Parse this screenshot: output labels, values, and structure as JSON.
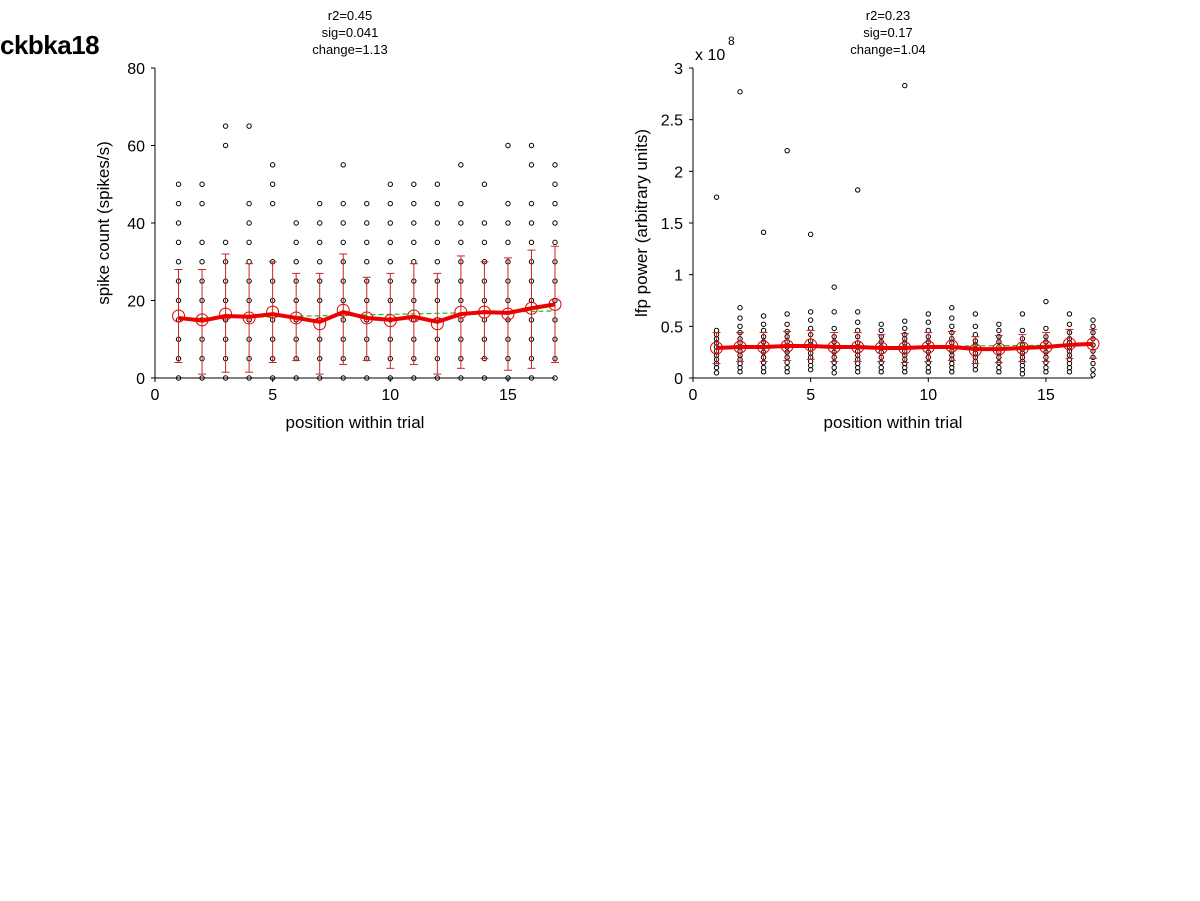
{
  "figure_title": "ckbka18",
  "chart_data": [
    {
      "type": "scatter",
      "stats": [
        "r2=0.45",
        "sig=0.041",
        "change=1.13"
      ],
      "xlabel": "position within trial",
      "ylabel": "spike count (spikes/s)",
      "exponent_label": "",
      "xlim": [
        0,
        17
      ],
      "ylim": [
        0,
        80
      ],
      "xticks": [
        0,
        5,
        10,
        15
      ],
      "xtick_labels": [
        "0",
        "5",
        "10",
        "15"
      ],
      "yticks": [
        0,
        20,
        40,
        60,
        80
      ],
      "ytick_labels": [
        "0",
        "20",
        "40",
        "60",
        "80"
      ],
      "grid": false,
      "raw_points": [
        {
          "x": 1,
          "values": [
            0,
            5,
            10,
            15,
            20,
            25,
            30,
            35,
            40,
            45,
            50
          ]
        },
        {
          "x": 2,
          "values": [
            0,
            5,
            10,
            15,
            20,
            25,
            30,
            35,
            45,
            50
          ]
        },
        {
          "x": 3,
          "values": [
            0,
            5,
            10,
            15,
            20,
            25,
            30,
            35,
            60,
            65
          ]
        },
        {
          "x": 4,
          "values": [
            0,
            5,
            10,
            15,
            20,
            25,
            30,
            35,
            40,
            45,
            65
          ]
        },
        {
          "x": 5,
          "values": [
            0,
            5,
            10,
            15,
            20,
            25,
            30,
            45,
            50,
            55
          ]
        },
        {
          "x": 6,
          "values": [
            0,
            5,
            10,
            15,
            20,
            25,
            30,
            35,
            40
          ]
        },
        {
          "x": 7,
          "values": [
            0,
            5,
            10,
            15,
            20,
            25,
            30,
            35,
            40,
            45
          ]
        },
        {
          "x": 8,
          "values": [
            0,
            5,
            10,
            15,
            20,
            25,
            30,
            35,
            40,
            45,
            55
          ]
        },
        {
          "x": 9,
          "values": [
            0,
            5,
            10,
            15,
            20,
            25,
            30,
            35,
            40,
            45
          ]
        },
        {
          "x": 10,
          "values": [
            0,
            5,
            10,
            15,
            20,
            25,
            30,
            35,
            40,
            45,
            50
          ]
        },
        {
          "x": 11,
          "values": [
            0,
            5,
            10,
            15,
            20,
            25,
            30,
            35,
            40,
            45,
            50
          ]
        },
        {
          "x": 12,
          "values": [
            0,
            5,
            10,
            15,
            20,
            25,
            30,
            35,
            40,
            45,
            50
          ]
        },
        {
          "x": 13,
          "values": [
            0,
            5,
            10,
            15,
            20,
            25,
            30,
            35,
            40,
            45,
            55
          ]
        },
        {
          "x": 14,
          "values": [
            0,
            5,
            10,
            15,
            20,
            25,
            30,
            35,
            40,
            50
          ]
        },
        {
          "x": 15,
          "values": [
            0,
            5,
            10,
            15,
            20,
            25,
            30,
            35,
            40,
            45,
            60
          ]
        },
        {
          "x": 16,
          "values": [
            0,
            5,
            10,
            15,
            20,
            25,
            30,
            35,
            40,
            45,
            55,
            60
          ]
        },
        {
          "x": 17,
          "values": [
            0,
            5,
            10,
            15,
            20,
            25,
            30,
            35,
            40,
            45,
            50,
            55
          ]
        }
      ],
      "mean": {
        "x": [
          1,
          2,
          3,
          4,
          5,
          6,
          7,
          8,
          9,
          10,
          11,
          12,
          13,
          14,
          15,
          16,
          17
        ],
        "y": [
          16,
          15,
          16.5,
          15.5,
          17,
          15.5,
          14,
          17.5,
          15.5,
          14.8,
          16,
          14,
          17,
          17,
          16.5,
          18,
          19
        ],
        "err_low": [
          4,
          1,
          1.5,
          1.5,
          4,
          4.5,
          1,
          3.5,
          4.5,
          2.5,
          3.5,
          1,
          2.5,
          5,
          2,
          2.5,
          4
        ],
        "err_high": [
          28,
          28,
          32,
          29.5,
          30,
          27,
          27,
          32,
          26,
          27,
          29.5,
          27,
          31.5,
          30,
          31,
          33,
          34
        ]
      },
      "smoothed": [
        15.5,
        14.8,
        16,
        15.8,
        16.5,
        15.5,
        14.5,
        17,
        15.5,
        15,
        15.8,
        14.5,
        16.5,
        17,
        16.8,
        18,
        19
      ],
      "fit": {
        "y_start": 15.3,
        "y_end": 17.3
      },
      "colors": {
        "points": "#000000",
        "mean": "#dd0000",
        "error_bars": "#cc2222",
        "smoothed": "#ee0000",
        "fit": "#22bb22"
      }
    },
    {
      "type": "scatter",
      "stats": [
        "r2=0.23",
        "sig=0.17",
        "change=1.04"
      ],
      "xlabel": "position within trial",
      "ylabel": "lfp power (arbitrary units)",
      "exponent_label": "x 10",
      "exponent_power": "8",
      "xlim": [
        0,
        17
      ],
      "ylim": [
        0,
        3
      ],
      "xticks": [
        0,
        5,
        10,
        15
      ],
      "xtick_labels": [
        "0",
        "5",
        "10",
        "15"
      ],
      "yticks": [
        0,
        0.5,
        1,
        1.5,
        2,
        2.5,
        3
      ],
      "ytick_labels": [
        "0",
        "0.5",
        "1",
        "1.5",
        "2",
        "2.5",
        "3"
      ],
      "grid": false,
      "raw_points": [
        {
          "x": 1,
          "values": [
            0.05,
            0.1,
            0.14,
            0.18,
            0.22,
            0.26,
            0.3,
            0.34,
            0.38,
            0.42,
            0.46,
            1.75
          ]
        },
        {
          "x": 2,
          "values": [
            0.06,
            0.1,
            0.14,
            0.18,
            0.22,
            0.26,
            0.3,
            0.34,
            0.38,
            0.44,
            0.5,
            0.58,
            0.68,
            2.77
          ]
        },
        {
          "x": 3,
          "values": [
            0.06,
            0.1,
            0.15,
            0.2,
            0.25,
            0.3,
            0.35,
            0.4,
            0.46,
            0.52,
            0.6,
            1.41
          ]
        },
        {
          "x": 4,
          "values": [
            0.06,
            0.1,
            0.15,
            0.2,
            0.25,
            0.3,
            0.35,
            0.4,
            0.45,
            0.52,
            0.62,
            2.2
          ]
        },
        {
          "x": 5,
          "values": [
            0.08,
            0.12,
            0.16,
            0.2,
            0.24,
            0.28,
            0.32,
            0.36,
            0.42,
            0.48,
            0.56,
            0.64,
            1.39
          ]
        },
        {
          "x": 6,
          "values": [
            0.05,
            0.1,
            0.15,
            0.2,
            0.25,
            0.3,
            0.35,
            0.4,
            0.48,
            0.64,
            0.88
          ]
        },
        {
          "x": 7,
          "values": [
            0.06,
            0.1,
            0.14,
            0.18,
            0.22,
            0.26,
            0.3,
            0.34,
            0.4,
            0.46,
            0.54,
            0.64,
            1.82
          ]
        },
        {
          "x": 8,
          "values": [
            0.06,
            0.1,
            0.15,
            0.2,
            0.25,
            0.3,
            0.35,
            0.4,
            0.46,
            0.52
          ]
        },
        {
          "x": 9,
          "values": [
            0.06,
            0.1,
            0.14,
            0.18,
            0.22,
            0.26,
            0.3,
            0.34,
            0.38,
            0.42,
            0.48,
            0.55,
            2.83
          ]
        },
        {
          "x": 10,
          "values": [
            0.06,
            0.1,
            0.15,
            0.2,
            0.25,
            0.3,
            0.35,
            0.4,
            0.46,
            0.54,
            0.62
          ]
        },
        {
          "x": 11,
          "values": [
            0.06,
            0.1,
            0.14,
            0.18,
            0.22,
            0.26,
            0.3,
            0.34,
            0.38,
            0.44,
            0.5,
            0.58,
            0.68
          ]
        },
        {
          "x": 12,
          "values": [
            0.08,
            0.12,
            0.16,
            0.2,
            0.24,
            0.28,
            0.32,
            0.36,
            0.42,
            0.5,
            0.62
          ]
        },
        {
          "x": 13,
          "values": [
            0.06,
            0.1,
            0.15,
            0.2,
            0.25,
            0.3,
            0.35,
            0.4,
            0.46,
            0.52
          ]
        },
        {
          "x": 14,
          "values": [
            0.04,
            0.08,
            0.12,
            0.16,
            0.2,
            0.24,
            0.28,
            0.32,
            0.38,
            0.46,
            0.62
          ]
        },
        {
          "x": 15,
          "values": [
            0.06,
            0.1,
            0.15,
            0.2,
            0.25,
            0.3,
            0.35,
            0.4,
            0.48,
            0.74
          ]
        },
        {
          "x": 16,
          "values": [
            0.06,
            0.1,
            0.14,
            0.18,
            0.22,
            0.26,
            0.3,
            0.34,
            0.38,
            0.44,
            0.52,
            0.62
          ]
        },
        {
          "x": 17,
          "values": [
            0.03,
            0.08,
            0.14,
            0.2,
            0.26,
            0.32,
            0.38,
            0.44,
            0.5,
            0.56
          ]
        }
      ],
      "mean": {
        "x": [
          1,
          2,
          3,
          4,
          5,
          6,
          7,
          8,
          9,
          10,
          11,
          12,
          13,
          14,
          15,
          16,
          17
        ],
        "y": [
          0.29,
          0.3,
          0.3,
          0.31,
          0.32,
          0.3,
          0.3,
          0.29,
          0.29,
          0.3,
          0.31,
          0.27,
          0.28,
          0.29,
          0.3,
          0.33,
          0.33
        ],
        "err_low": [
          0.14,
          0.16,
          0.16,
          0.17,
          0.18,
          0.16,
          0.16,
          0.16,
          0.15,
          0.16,
          0.17,
          0.14,
          0.15,
          0.16,
          0.16,
          0.19,
          0.19
        ],
        "err_high": [
          0.44,
          0.44,
          0.44,
          0.45,
          0.46,
          0.44,
          0.44,
          0.42,
          0.43,
          0.44,
          0.45,
          0.4,
          0.41,
          0.42,
          0.44,
          0.47,
          0.47
        ]
      },
      "smoothed": [
        0.29,
        0.3,
        0.3,
        0.31,
        0.31,
        0.3,
        0.3,
        0.29,
        0.29,
        0.3,
        0.3,
        0.28,
        0.28,
        0.29,
        0.3,
        0.32,
        0.33
      ],
      "fit": {
        "y_start": 0.29,
        "y_end": 0.32
      },
      "colors": {
        "points": "#000000",
        "mean": "#dd0000",
        "error_bars": "#cc2222",
        "smoothed": "#ee0000",
        "fit": "#22bb22"
      }
    }
  ]
}
